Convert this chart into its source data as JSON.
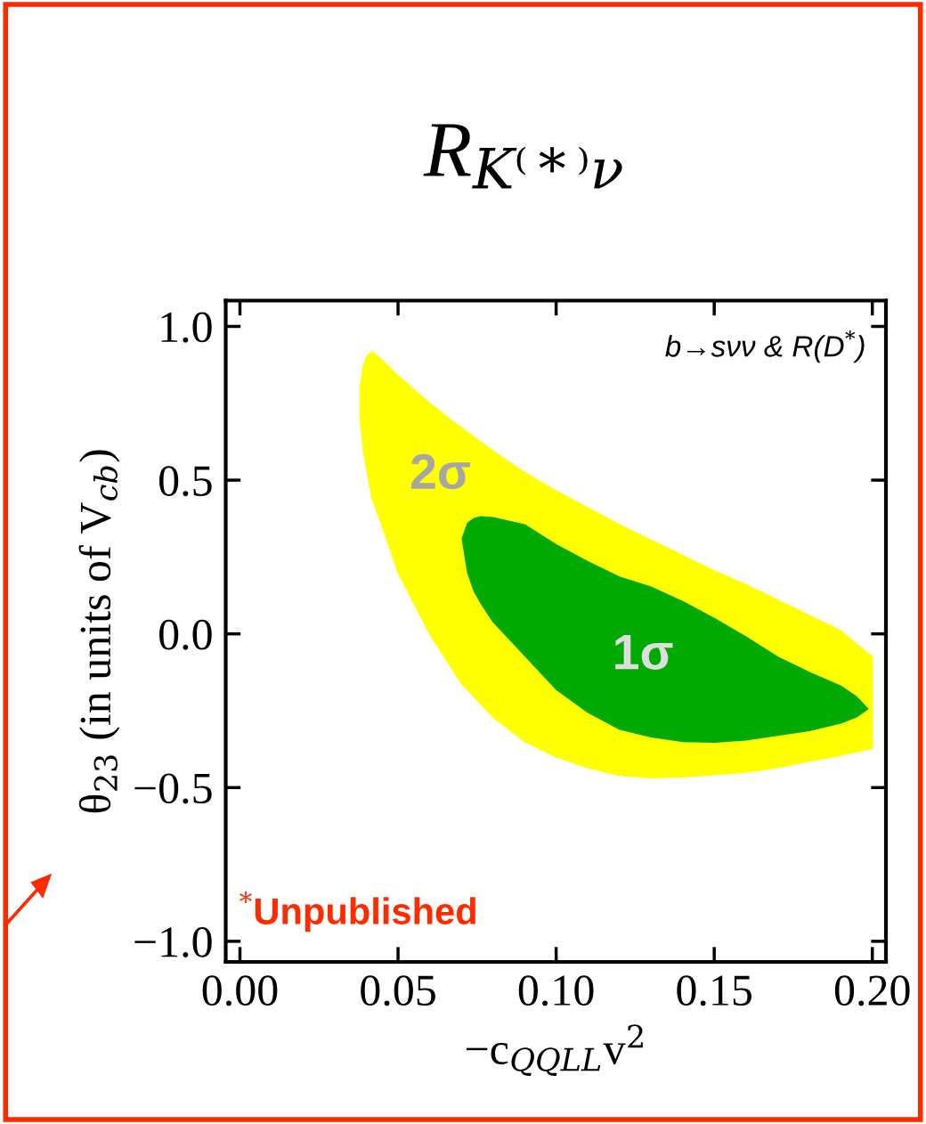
{
  "chart_data": {
    "type": "area",
    "title": "R$_{K⁽*⁾ν}$",
    "xlabel": "−c$_{QQLL}$v$^{2}$",
    "ylabel": "θ$_{23}$ (in units of V$_{cb}$)",
    "xlim": [
      -0.0045,
      0.2043
    ],
    "ylim": [
      -1.067,
      1.084
    ],
    "xticks": [
      {
        "value": 0,
        "label": "0.00"
      },
      {
        "value": 0.05,
        "label": "0.05"
      },
      {
        "value": 0.1,
        "label": "0.10"
      },
      {
        "value": 0.15,
        "label": "0.15"
      },
      {
        "value": 0.2,
        "label": "0.20"
      }
    ],
    "yticks": [
      {
        "value": -1,
        "label": "−1.0"
      },
      {
        "value": -0.5,
        "label": "−0.5"
      },
      {
        "value": 0,
        "label": "0.0"
      },
      {
        "value": 0.5,
        "label": "0.5"
      },
      {
        "value": 1,
        "label": "1.0"
      }
    ],
    "series": [
      {
        "color": "#ffff00",
        "x": [
          0.038,
          0.039,
          0.04,
          0.0418,
          0.045,
          0.05,
          0.06,
          0.07,
          0.08,
          0.09,
          0.1,
          0.11,
          0.12,
          0.13,
          0.14,
          0.15,
          0.16,
          0.17,
          0.18,
          0.19,
          0.2,
          0.2,
          0.19,
          0.18,
          0.17,
          0.16,
          0.15,
          0.14,
          0.13,
          0.12,
          0.11,
          0.1,
          0.09,
          0.08,
          0.07,
          0.06,
          0.05,
          0.045,
          0.0418,
          0.04,
          0.039,
          0.038
        ],
        "values": [
          0.8,
          0.87,
          0.9,
          0.918,
          0.89,
          0.84,
          0.75,
          0.67,
          0.595,
          0.525,
          0.465,
          0.41,
          0.355,
          0.305,
          0.255,
          0.205,
          0.16,
          0.11,
          0.06,
          0.01,
          -0.075,
          -0.373,
          -0.395,
          -0.415,
          -0.435,
          -0.45,
          -0.458,
          -0.465,
          -0.468,
          -0.46,
          -0.435,
          -0.4,
          -0.35,
          -0.27,
          -0.16,
          0.0,
          0.2,
          0.35,
          0.44,
          0.54,
          0.6,
          0.7
        ]
      },
      {
        "color": "#00aa00",
        "x": [
          0.0703,
          0.072,
          0.074,
          0.0762,
          0.08,
          0.09,
          0.1,
          0.11,
          0.12,
          0.13,
          0.14,
          0.15,
          0.16,
          0.17,
          0.18,
          0.19,
          0.195,
          0.1986,
          0.195,
          0.19,
          0.18,
          0.17,
          0.16,
          0.15,
          0.14,
          0.13,
          0.12,
          0.11,
          0.1,
          0.09,
          0.08,
          0.0762,
          0.074,
          0.072
        ],
        "values": [
          0.31,
          0.36,
          0.375,
          0.381,
          0.378,
          0.355,
          0.29,
          0.235,
          0.185,
          0.152,
          0.105,
          0.05,
          -0.01,
          -0.075,
          -0.125,
          -0.17,
          -0.205,
          -0.244,
          -0.27,
          -0.29,
          -0.315,
          -0.33,
          -0.345,
          -0.352,
          -0.35,
          -0.335,
          -0.31,
          -0.255,
          -0.18,
          -0.07,
          0.04,
          0.1,
          0.14,
          0.2
        ]
      }
    ],
    "annotations": [
      "2σ",
      "1σ",
      "b→sνν & R(D$^{*}$)",
      "$^{*}$Unpublished"
    ]
  }
}
